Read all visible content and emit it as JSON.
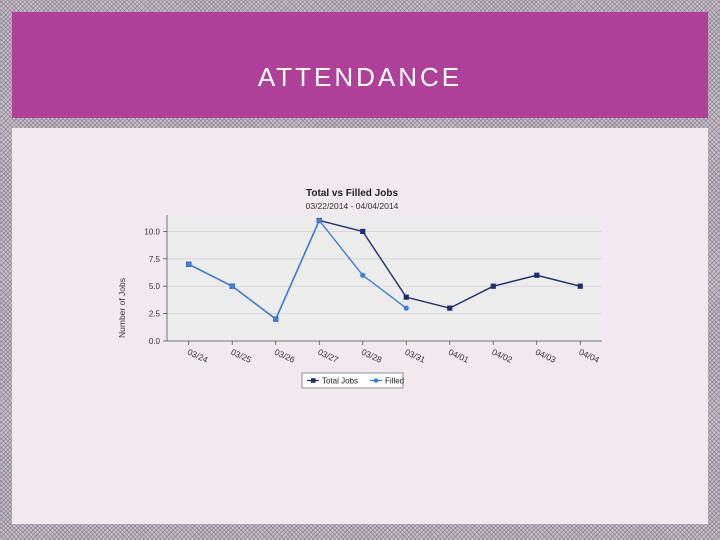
{
  "slide": {
    "title": "ATTENDANCE"
  },
  "chart_data": {
    "type": "line",
    "title": "Total vs Filled Jobs",
    "subtitle": "03/22/2014 - 04/04/2014",
    "xlabel": "",
    "ylabel": "Number of Jobs",
    "categories": [
      "03/24",
      "03/25",
      "03/26",
      "03/27",
      "03/28",
      "03/31",
      "04/01",
      "04/02",
      "04/03",
      "04/04"
    ],
    "ylim": [
      0,
      11.5
    ],
    "yticks": [
      "0.0",
      "2.5",
      "5.0",
      "7.5",
      "10.0"
    ],
    "grid": true,
    "legend": "bottom",
    "series": [
      {
        "name": "Total Jobs",
        "color": "#1f2d6b",
        "marker": "square",
        "values": [
          7,
          5,
          2,
          11,
          10,
          4,
          3,
          5,
          6,
          5
        ]
      },
      {
        "name": "Filled",
        "color": "#3d7fd6",
        "marker": "circle",
        "values": [
          7,
          5,
          2,
          11,
          6,
          3,
          null,
          null,
          null,
          null
        ]
      }
    ]
  }
}
